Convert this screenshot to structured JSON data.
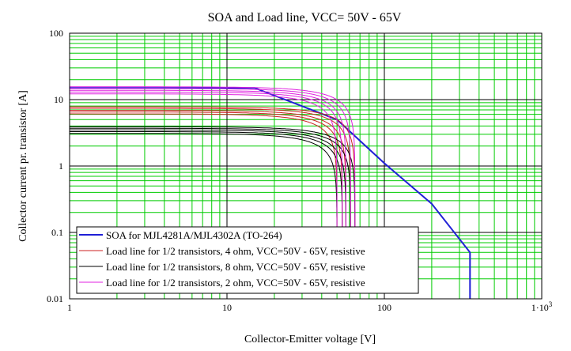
{
  "chart_data": {
    "type": "line",
    "title": "SOA and Load line, VCC= 50V - 65V",
    "xlabel": "Collector-Emitter voltage [V]",
    "ylabel": "Collector current pr. transistor [A]",
    "x_scale": "log",
    "y_scale": "log",
    "xlim": [
      1,
      1000
    ],
    "ylim": [
      0.01,
      100
    ],
    "x_ticks": [
      {
        "value": 1,
        "label": "1"
      },
      {
        "value": 10,
        "label": "10"
      },
      {
        "value": 100,
        "label": "100"
      },
      {
        "value": 1000,
        "label": "1·10",
        "exp": "3"
      }
    ],
    "y_ticks": [
      {
        "value": 100,
        "label": "100"
      },
      {
        "value": 10,
        "label": "10"
      },
      {
        "value": 1,
        "label": "1"
      },
      {
        "value": 0.1,
        "label": "0.1"
      },
      {
        "value": 0.01,
        "label": "0.01"
      }
    ],
    "grid": true,
    "grid_color": "#00cc00",
    "legend_position": "bottom-left",
    "series": [
      {
        "name": "SOA for MJL4281A/MJL4302A (TO-264)",
        "color": "#1f1fd6",
        "kind": "soa",
        "x": [
          1,
          15,
          50,
          100,
          200,
          350,
          350
        ],
        "y": [
          15,
          15,
          5,
          1.1,
          0.27,
          0.05,
          0.01
        ]
      },
      {
        "name": "Load line for 1/2 transistors, 4 ohm, VCC=50V - 65V, resistive",
        "color": "#cc2222",
        "kind": "loadline",
        "i0": [
          6.1,
          6.5,
          6.9,
          7.4,
          7.8
        ],
        "vcc": [
          50,
          54,
          57,
          61,
          65
        ]
      },
      {
        "name": "Load line for 1/2 transistors, 8 ohm, VCC=50V - 65V, resistive",
        "color": "#000000",
        "kind": "loadline",
        "i0": [
          3.1,
          3.3,
          3.5,
          3.7,
          3.9
        ],
        "vcc": [
          50,
          54,
          57,
          61,
          65
        ]
      },
      {
        "name": "Load line for 1/2 transistors, 2 ohm, VCC=50V - 65V, resistive",
        "color": "#e020e0",
        "kind": "loadline",
        "i0": [
          12.2,
          13.0,
          13.8,
          14.7,
          15.6
        ],
        "vcc": [
          50,
          54,
          57,
          61,
          65
        ]
      }
    ]
  }
}
